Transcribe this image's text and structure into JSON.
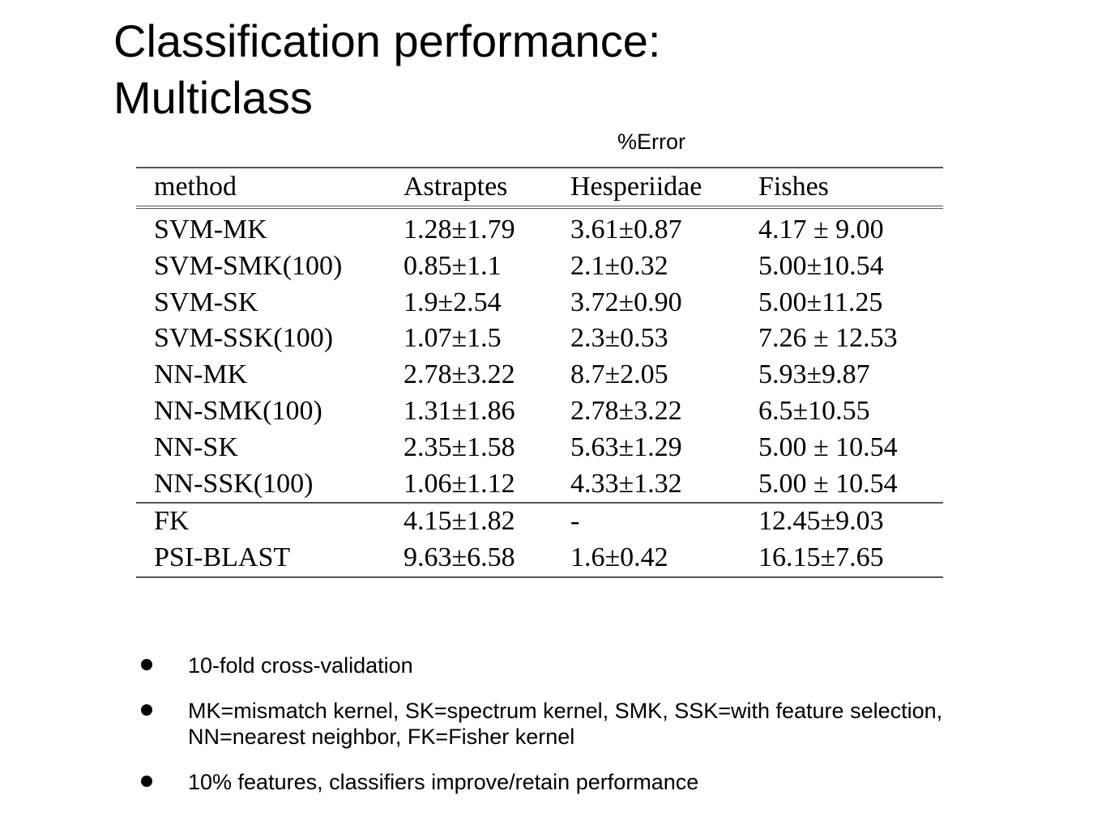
{
  "title": {
    "line1": "Classification performance:",
    "line2": "Multiclass"
  },
  "table_caption": "%Error",
  "table": {
    "headers": [
      "method",
      "Astraptes",
      "Hesperiidae",
      "Fishes"
    ],
    "rows": [
      [
        "SVM-MK",
        "1.28±1.79",
        "3.61±0.87",
        "4.17 ± 9.00"
      ],
      [
        "SVM-SMK(100)",
        "0.85±1.1",
        "2.1±0.32",
        "5.00±10.54"
      ],
      [
        "SVM-SK",
        "1.9±2.54",
        "3.72±0.90",
        "5.00±11.25"
      ],
      [
        "SVM-SSK(100)",
        "1.07±1.5",
        "2.3±0.53",
        "7.26 ± 12.53"
      ],
      [
        "NN-MK",
        "2.78±3.22",
        "8.7±2.05",
        "5.93±9.87"
      ],
      [
        "NN-SMK(100)",
        "1.31±1.86",
        "2.78±3.22",
        "6.5±10.55"
      ],
      [
        "NN-SK",
        "2.35±1.58",
        "5.63±1.29",
        "5.00 ± 10.54"
      ],
      [
        "NN-SSK(100)",
        "1.06±1.12",
        "4.33±1.32",
        "5.00 ± 10.54"
      ],
      [
        "FK",
        "4.15±1.82",
        "-",
        "12.45±9.03"
      ],
      [
        "PSI-BLAST",
        "9.63±6.58",
        "1.6±0.42",
        "16.15±7.65"
      ]
    ]
  },
  "bullets": [
    "10-fold cross-validation",
    "MK=mismatch kernel, SK=spectrum kernel, SMK, SSK=with feature selection, NN=nearest neighbor, FK=Fisher kernel",
    "10% features, classifiers improve/retain performance"
  ]
}
